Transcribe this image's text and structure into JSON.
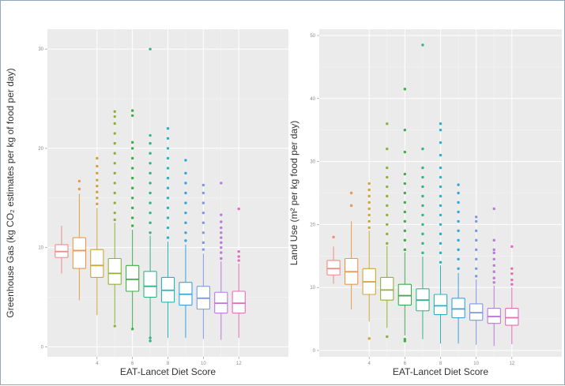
{
  "chart_data": [
    {
      "type": "boxplot",
      "xlabel": "EAT-Lancet Diet Score",
      "ylabel": "Greenhouse Gas (kg CO₂ estimates per kg of food per day)",
      "ylim": [
        -1,
        32
      ],
      "yticks": [
        0,
        10,
        20,
        30
      ],
      "xlim": [
        1.2,
        14.8
      ],
      "xticks": [
        4,
        6,
        8,
        10,
        12
      ],
      "grid": true,
      "boxes": [
        {
          "score": 2,
          "q1": 9.0,
          "median": 9.6,
          "q3": 10.3,
          "whisker_low": 7.4,
          "whisker_high": 12.2,
          "outliers": []
        },
        {
          "score": 3,
          "q1": 7.9,
          "median": 9.7,
          "q3": 11.0,
          "whisker_low": 4.7,
          "whisker_high": 15.4,
          "outliers": [
            15.9,
            16.7
          ]
        },
        {
          "score": 4,
          "q1": 7.0,
          "median": 8.2,
          "q3": 9.8,
          "whisker_low": 3.2,
          "whisker_high": 14.0,
          "outliers": [
            14.4,
            15.0,
            15.6,
            16.2,
            16.8,
            17.5,
            18.2,
            19.0
          ]
        },
        {
          "score": 5,
          "q1": 6.3,
          "median": 7.4,
          "q3": 8.9,
          "whisker_low": 2.3,
          "whisker_high": 12.5,
          "outliers": [
            2.1,
            12.8,
            13.5,
            14.5,
            15.5,
            16.5,
            17.5,
            18.5,
            19.5,
            20.5,
            21.5,
            22.5,
            23.2,
            23.7
          ]
        },
        {
          "score": 6,
          "q1": 5.6,
          "median": 6.8,
          "q3": 8.2,
          "whisker_low": 1.9,
          "whisker_high": 11.8,
          "outliers": [
            1.8,
            12.2,
            13.0,
            14.0,
            15.0,
            16.0,
            17.0,
            18.0,
            19.0,
            20.0,
            20.6,
            23.3,
            23.8
          ]
        },
        {
          "score": 7,
          "q1": 5.0,
          "median": 6.1,
          "q3": 7.6,
          "whisker_low": 1.0,
          "whisker_high": 11.2,
          "outliers": [
            0.6,
            0.9,
            11.5,
            12.5,
            13.5,
            14.5,
            15.5,
            16.5,
            17.5,
            18.5,
            19.5,
            20.5,
            21.3,
            30.0
          ]
        },
        {
          "score": 8,
          "q1": 4.5,
          "median": 5.7,
          "q3": 7.0,
          "whisker_low": 0.9,
          "whisker_high": 10.6,
          "outliers": [
            11.0,
            12.0,
            13.0,
            14.0,
            15.0,
            16.0,
            17.0,
            18.0,
            19.0,
            20.0,
            21.0,
            22.0
          ]
        },
        {
          "score": 9,
          "q1": 4.2,
          "median": 5.3,
          "q3": 6.5,
          "whisker_low": 0.9,
          "whisker_high": 10.3,
          "outliers": [
            10.7,
            11.5,
            12.5,
            13.5,
            14.5,
            15.5,
            16.5,
            17.5,
            18.8
          ]
        },
        {
          "score": 10,
          "q1": 3.8,
          "median": 4.9,
          "q3": 6.1,
          "whisker_low": 0.8,
          "whisker_high": 9.4,
          "outliers": [
            9.8,
            10.5,
            11.5,
            12.5,
            13.5,
            14.5,
            15.5,
            16.3
          ]
        },
        {
          "score": 11,
          "q1": 3.4,
          "median": 4.4,
          "q3": 5.5,
          "whisker_low": 0.7,
          "whisker_high": 8.6,
          "outliers": [
            8.9,
            9.5,
            10.0,
            10.5,
            11.0,
            11.5,
            12.0,
            12.6,
            13.3,
            16.5
          ]
        },
        {
          "score": 12,
          "q1": 3.4,
          "median": 4.4,
          "q3": 5.6,
          "whisker_low": 0.9,
          "whisker_high": 8.4,
          "outliers": [
            8.7,
            9.1,
            9.6,
            13.9
          ]
        }
      ]
    },
    {
      "type": "boxplot",
      "xlabel": "EAT-Lancet Diet Score",
      "ylabel": "Land Use (m² per kg food per day)",
      "ylim": [
        -1,
        51
      ],
      "yticks": [
        0,
        10,
        20,
        30,
        40,
        50
      ],
      "xlim": [
        1.2,
        14.8
      ],
      "xticks": [
        4,
        6,
        8,
        10,
        12
      ],
      "grid": true,
      "boxes": [
        {
          "score": 2,
          "q1": 12.0,
          "median": 13.0,
          "q3": 14.3,
          "whisker_low": 10.6,
          "whisker_high": 16.5,
          "outliers": [
            18.0
          ]
        },
        {
          "score": 3,
          "q1": 10.5,
          "median": 12.5,
          "q3": 14.6,
          "whisker_low": 6.5,
          "whisker_high": 20.5,
          "outliers": [
            23.0,
            25.0
          ]
        },
        {
          "score": 4,
          "q1": 8.9,
          "median": 10.9,
          "q3": 13.0,
          "whisker_low": 4.6,
          "whisker_high": 19.0,
          "outliers": [
            1.9,
            19.5,
            20.5,
            21.5,
            22.5,
            23.5,
            24.5,
            25.5,
            26.5
          ]
        },
        {
          "score": 5,
          "q1": 8.0,
          "median": 9.6,
          "q3": 11.6,
          "whisker_low": 3.6,
          "whisker_high": 16.6,
          "outliers": [
            2.2,
            17.0,
            18.5,
            20.0,
            21.5,
            23.0,
            24.5,
            26.0,
            27.5,
            29.0,
            32.0,
            36.0
          ]
        },
        {
          "score": 6,
          "q1": 7.2,
          "median": 8.7,
          "q3": 10.5,
          "whisker_low": 2.4,
          "whisker_high": 15.6,
          "outliers": [
            1.5,
            1.8,
            16.0,
            17.5,
            19.0,
            20.5,
            22.0,
            23.5,
            25.0,
            26.5,
            28.0,
            31.5,
            35.0,
            41.5
          ]
        },
        {
          "score": 7,
          "q1": 6.3,
          "median": 8.0,
          "q3": 9.8,
          "whisker_low": 1.8,
          "whisker_high": 14.9,
          "outliers": [
            15.5,
            17.0,
            18.5,
            20.0,
            21.5,
            23.0,
            24.5,
            26.0,
            27.5,
            29.0,
            32.0,
            48.5
          ]
        },
        {
          "score": 8,
          "q1": 5.7,
          "median": 7.1,
          "q3": 8.9,
          "whisker_low": 1.1,
          "whisker_high": 13.5,
          "outliers": [
            14.0,
            15.5,
            17.0,
            18.5,
            20.0,
            21.5,
            23.0,
            24.5,
            26.0,
            27.5,
            29.0,
            31.0,
            33.0,
            35.0,
            36.0
          ]
        },
        {
          "score": 9,
          "q1": 5.2,
          "median": 6.6,
          "q3": 8.3,
          "whisker_low": 1.1,
          "whisker_high": 12.3,
          "outliers": [
            13.0,
            14.5,
            16.0,
            17.5,
            19.0,
            20.5,
            22.0,
            23.5,
            25.0,
            26.3
          ]
        },
        {
          "score": 10,
          "q1": 4.8,
          "median": 6.0,
          "q3": 7.4,
          "whisker_low": 0.9,
          "whisker_high": 11.3,
          "outliers": [
            11.8,
            13.0,
            14.5,
            16.0,
            17.5,
            19.0,
            20.5,
            21.2
          ]
        },
        {
          "score": 11,
          "q1": 4.3,
          "median": 5.4,
          "q3": 6.7,
          "whisker_low": 0.7,
          "whisker_high": 10.3,
          "outliers": [
            10.8,
            11.5,
            12.5,
            13.5,
            14.5,
            15.5,
            16.0,
            17.5,
            22.5
          ]
        },
        {
          "score": 12,
          "q1": 4.0,
          "median": 5.2,
          "q3": 6.7,
          "whisker_low": 1.0,
          "whisker_high": 10.0,
          "outliers": [
            10.5,
            11.2,
            12.2,
            13.0,
            16.5
          ]
        }
      ]
    }
  ],
  "colors": {
    "panel_bg": "#ebebeb",
    "grid_major": "#ffffff",
    "grid_minor": "#f4f4f4",
    "tick_label": "#8a8a8a",
    "axis_title": "#333333",
    "frame": "#8fa8bc",
    "series": [
      "#f08a8a",
      "#e89a4c",
      "#cfa43a",
      "#8fb236",
      "#3fad46",
      "#34b38a",
      "#28b3c0",
      "#37a4dd",
      "#7e98e3",
      "#b97ad8",
      "#e36db7",
      "#ee7fb0"
    ]
  }
}
